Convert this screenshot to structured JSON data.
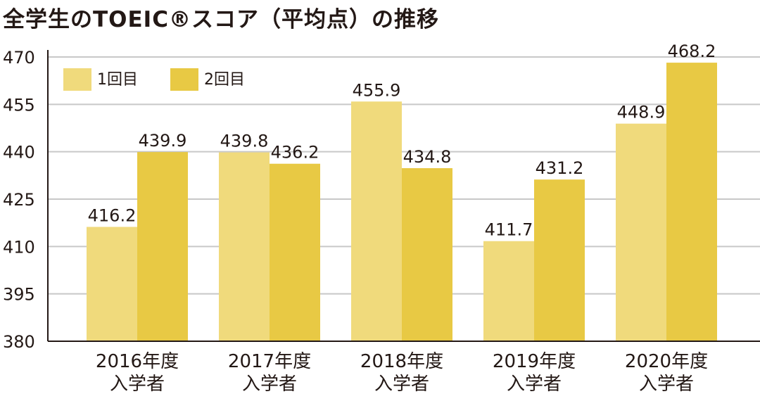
{
  "title": "全学生のTOEIC®スコア（平均点）の推移",
  "colors": {
    "series1": "#F0DA7C",
    "series2": "#E8C944",
    "grid": "#C8C8C8",
    "axis": "#231815",
    "text": "#231815"
  },
  "chart_data": {
    "type": "bar",
    "title": "全学生のTOEIC®スコア（平均点）の推移",
    "xlabel": "",
    "ylabel": "",
    "ylim": [
      380,
      470
    ],
    "yticks": [
      380,
      395,
      410,
      425,
      440,
      455,
      470
    ],
    "grid": true,
    "legend_position": "top-left",
    "categories": [
      [
        "2016年度",
        "入学者"
      ],
      [
        "2017年度",
        "入学者"
      ],
      [
        "2018年度",
        "入学者"
      ],
      [
        "2019年度",
        "入学者"
      ],
      [
        "2020年度",
        "入学者"
      ]
    ],
    "series": [
      {
        "name": "1回目",
        "values": [
          416.2,
          439.8,
          455.9,
          411.7,
          448.9
        ]
      },
      {
        "name": "2回目",
        "values": [
          439.9,
          436.2,
          434.8,
          431.2,
          468.2
        ]
      }
    ]
  }
}
